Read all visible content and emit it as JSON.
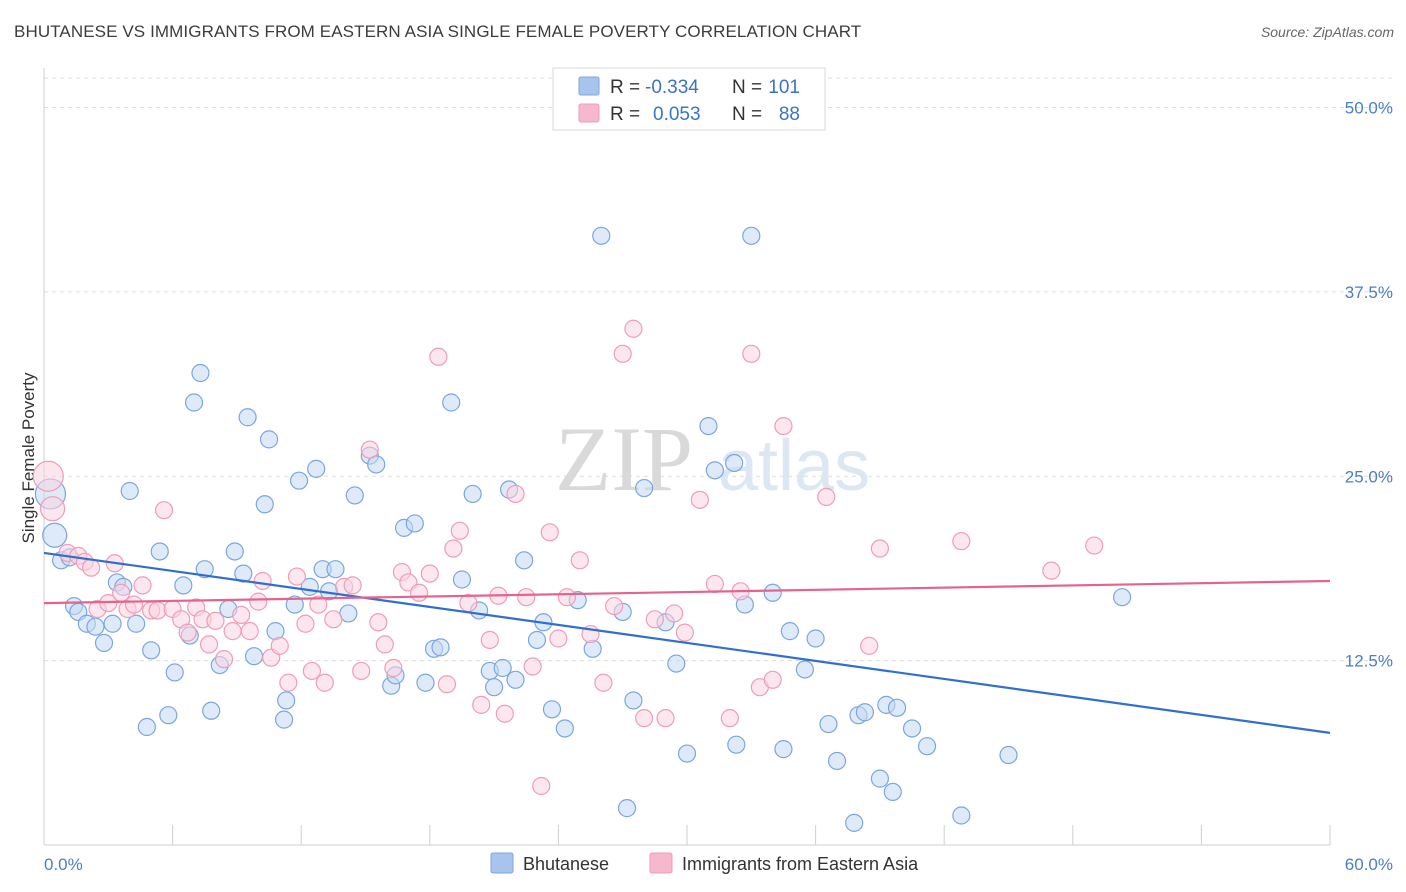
{
  "title": "BHUTANESE VS IMMIGRANTS FROM EASTERN ASIA SINGLE FEMALE POVERTY CORRELATION CHART",
  "source": "Source: ZipAtlas.com",
  "watermark": {
    "zip": "ZIP",
    "atlas": "atlas"
  },
  "legend": {
    "rows": [
      {
        "r_label": "R =",
        "r_value": "-0.334",
        "n_label": "N =",
        "n_value": "101",
        "color": "#a9c4ec"
      },
      {
        "r_label": "R =",
        "r_value": "0.053",
        "n_label": "N =",
        "n_value": "88",
        "color": "#f5b8cc"
      }
    ]
  },
  "bottom_legend": [
    {
      "label": "Bhutanese",
      "color": "#a9c4ec"
    },
    {
      "label": "Immigrants from Eastern Asia",
      "color": "#f5b8cc"
    }
  ],
  "chart_data": {
    "type": "scatter",
    "title": "BHUTANESE VS IMMIGRANTS FROM EASTERN ASIA SINGLE FEMALE POVERTY CORRELATION CHART",
    "xlabel": "",
    "ylabel": "Single Female Poverty",
    "xlim": [
      0,
      60
    ],
    "ylim": [
      0,
      52
    ],
    "x_tick_labels": [
      "0.0%",
      "60.0%"
    ],
    "y_ticks": [
      12.5,
      25.0,
      37.5,
      50.0
    ],
    "y_tick_labels": [
      "12.5%",
      "25.0%",
      "37.5%",
      "50.0%"
    ],
    "grid": "horizontal-dashed",
    "legend_position": "top-center",
    "series": [
      {
        "name": "Bhutanese",
        "color": "#7aa6e0",
        "fill": "#c5d8f3",
        "trend": {
          "x": [
            0,
            60
          ],
          "y": [
            19.8,
            7.6
          ],
          "color": "#2f6fd0"
        },
        "points": [
          [
            0.3,
            23.8,
            3
          ],
          [
            0.5,
            21.0,
            2
          ],
          [
            0.8,
            19.3,
            1
          ],
          [
            1.2,
            19.5,
            1
          ],
          [
            1.4,
            16.2,
            1
          ],
          [
            1.6,
            15.8,
            1
          ],
          [
            2.0,
            15.0,
            1
          ],
          [
            2.4,
            14.8,
            1
          ],
          [
            2.8,
            13.7,
            1
          ],
          [
            3.2,
            15.0,
            1
          ],
          [
            3.4,
            17.8,
            1
          ],
          [
            3.7,
            17.5,
            1
          ],
          [
            4.0,
            24.0,
            1
          ],
          [
            4.3,
            15.0,
            1
          ],
          [
            4.8,
            8.0,
            1
          ],
          [
            5.0,
            13.2,
            1
          ],
          [
            5.4,
            19.9,
            1
          ],
          [
            5.8,
            8.8,
            1
          ],
          [
            6.1,
            11.7,
            1
          ],
          [
            6.5,
            17.6,
            1
          ],
          [
            6.8,
            14.2,
            1
          ],
          [
            7.0,
            30.0,
            1
          ],
          [
            7.3,
            32.0,
            1
          ],
          [
            7.5,
            18.7,
            1
          ],
          [
            7.8,
            9.1,
            1
          ],
          [
            8.2,
            12.2,
            1
          ],
          [
            8.6,
            16.0,
            1
          ],
          [
            8.9,
            19.9,
            1
          ],
          [
            9.3,
            18.4,
            1
          ],
          [
            9.5,
            29.0,
            1
          ],
          [
            9.8,
            12.8,
            1
          ],
          [
            10.3,
            23.1,
            1
          ],
          [
            10.5,
            27.5,
            1
          ],
          [
            10.8,
            14.5,
            1
          ],
          [
            11.2,
            8.5,
            1
          ],
          [
            11.3,
            9.8,
            1
          ],
          [
            11.7,
            16.3,
            1
          ],
          [
            11.9,
            24.7,
            1
          ],
          [
            12.4,
            17.5,
            1
          ],
          [
            12.7,
            25.5,
            1
          ],
          [
            13.0,
            18.7,
            1
          ],
          [
            13.3,
            17.2,
            1
          ],
          [
            13.6,
            18.7,
            1
          ],
          [
            14.2,
            15.7,
            1
          ],
          [
            14.5,
            23.7,
            1
          ],
          [
            15.2,
            26.4,
            1
          ],
          [
            15.5,
            25.8,
            1
          ],
          [
            16.2,
            10.8,
            1
          ],
          [
            16.4,
            11.5,
            1
          ],
          [
            16.8,
            21.5,
            1
          ],
          [
            17.3,
            21.8,
            1
          ],
          [
            17.8,
            11.0,
            1
          ],
          [
            18.2,
            13.3,
            1
          ],
          [
            18.5,
            13.4,
            1
          ],
          [
            19.0,
            30.0,
            1
          ],
          [
            19.5,
            18.0,
            1
          ],
          [
            20.0,
            23.8,
            1
          ],
          [
            20.3,
            15.9,
            1
          ],
          [
            20.8,
            11.8,
            1
          ],
          [
            21.0,
            10.7,
            1
          ],
          [
            21.4,
            12.0,
            1
          ],
          [
            21.7,
            24.1,
            1
          ],
          [
            22.0,
            11.2,
            1
          ],
          [
            22.4,
            19.3,
            1
          ],
          [
            23.0,
            13.9,
            1
          ],
          [
            23.3,
            15.1,
            1
          ],
          [
            23.7,
            9.2,
            1
          ],
          [
            24.3,
            7.9,
            1
          ],
          [
            24.9,
            16.6,
            1
          ],
          [
            25.6,
            13.3,
            1
          ],
          [
            26.0,
            41.3,
            1
          ],
          [
            27.2,
            2.5,
            1
          ],
          [
            27.0,
            15.8,
            1
          ],
          [
            27.5,
            9.8,
            1
          ],
          [
            28.0,
            24.2,
            1
          ],
          [
            29.0,
            15.1,
            1
          ],
          [
            29.5,
            12.3,
            1
          ],
          [
            30.0,
            6.2,
            1
          ],
          [
            31.0,
            28.4,
            1
          ],
          [
            31.3,
            25.4,
            1
          ],
          [
            32.2,
            25.9,
            1
          ],
          [
            32.3,
            6.8,
            1
          ],
          [
            32.7,
            16.3,
            1
          ],
          [
            33.0,
            41.3,
            1
          ],
          [
            34.0,
            17.1,
            1
          ],
          [
            34.5,
            6.5,
            1
          ],
          [
            34.8,
            14.5,
            1
          ],
          [
            35.5,
            11.9,
            1
          ],
          [
            36.0,
            14.0,
            1
          ],
          [
            36.6,
            8.2,
            1
          ],
          [
            37.0,
            5.7,
            1
          ],
          [
            37.8,
            1.5,
            1
          ],
          [
            38.0,
            8.8,
            1
          ],
          [
            38.3,
            9.0,
            1
          ],
          [
            39.0,
            4.5,
            1
          ],
          [
            39.3,
            9.5,
            1
          ],
          [
            39.6,
            3.6,
            1
          ],
          [
            39.8,
            9.3,
            1
          ],
          [
            40.5,
            7.9,
            1
          ],
          [
            41.2,
            6.7,
            1
          ],
          [
            42.8,
            2.0,
            1
          ],
          [
            45.0,
            6.1,
            1
          ],
          [
            50.3,
            16.8,
            1
          ]
        ]
      },
      {
        "name": "Immigrants from Eastern Asia",
        "color": "#ef9cb8",
        "fill": "#f9d3e0",
        "trend": {
          "x": [
            0,
            60
          ],
          "y": [
            16.4,
            17.9
          ],
          "color": "#e4648d"
        },
        "points": [
          [
            0.2,
            25.0,
            3
          ],
          [
            0.4,
            22.8,
            2
          ],
          [
            1.1,
            19.8,
            1
          ],
          [
            1.6,
            19.6,
            1
          ],
          [
            1.9,
            19.2,
            1
          ],
          [
            2.2,
            18.8,
            1
          ],
          [
            2.5,
            16.0,
            1
          ],
          [
            3.0,
            16.4,
            1
          ],
          [
            3.3,
            19.1,
            1
          ],
          [
            3.6,
            17.1,
            1
          ],
          [
            3.9,
            16.0,
            1
          ],
          [
            4.2,
            16.3,
            1
          ],
          [
            4.6,
            17.6,
            1
          ],
          [
            5.0,
            15.9,
            1
          ],
          [
            5.3,
            15.9,
            1
          ],
          [
            5.6,
            22.7,
            1
          ],
          [
            6.0,
            16.0,
            1
          ],
          [
            6.4,
            15.3,
            1
          ],
          [
            6.7,
            14.4,
            1
          ],
          [
            7.1,
            16.1,
            1
          ],
          [
            7.4,
            15.3,
            1
          ],
          [
            7.7,
            13.6,
            1
          ],
          [
            8.0,
            15.2,
            1
          ],
          [
            8.4,
            12.6,
            1
          ],
          [
            8.8,
            14.5,
            1
          ],
          [
            9.2,
            15.6,
            1
          ],
          [
            9.6,
            14.5,
            1
          ],
          [
            10.0,
            16.5,
            1
          ],
          [
            10.2,
            17.9,
            1
          ],
          [
            10.6,
            12.7,
            1
          ],
          [
            11.0,
            13.5,
            1
          ],
          [
            11.4,
            11.0,
            1
          ],
          [
            11.8,
            18.2,
            1
          ],
          [
            12.2,
            15.0,
            1
          ],
          [
            12.5,
            11.8,
            1
          ],
          [
            12.8,
            16.3,
            1
          ],
          [
            13.1,
            11.0,
            1
          ],
          [
            13.5,
            15.3,
            1
          ],
          [
            14.0,
            17.5,
            1
          ],
          [
            14.4,
            17.6,
            1
          ],
          [
            14.8,
            11.8,
            1
          ],
          [
            15.2,
            26.8,
            1
          ],
          [
            15.6,
            15.1,
            1
          ],
          [
            15.9,
            13.6,
            1
          ],
          [
            16.3,
            12.0,
            1
          ],
          [
            16.7,
            18.5,
            1
          ],
          [
            17.0,
            17.8,
            1
          ],
          [
            17.5,
            17.1,
            1
          ],
          [
            18.0,
            18.4,
            1
          ],
          [
            18.4,
            33.1,
            1
          ],
          [
            18.8,
            10.9,
            1
          ],
          [
            19.1,
            20.1,
            1
          ],
          [
            19.4,
            21.3,
            1
          ],
          [
            19.8,
            16.4,
            1
          ],
          [
            20.4,
            9.5,
            1
          ],
          [
            20.8,
            13.9,
            1
          ],
          [
            21.2,
            16.9,
            1
          ],
          [
            21.5,
            8.9,
            1
          ],
          [
            22.0,
            23.8,
            1
          ],
          [
            22.5,
            16.8,
            1
          ],
          [
            22.8,
            12.1,
            1
          ],
          [
            23.2,
            4.0,
            1
          ],
          [
            23.6,
            21.2,
            1
          ],
          [
            24.0,
            14.0,
            1
          ],
          [
            24.4,
            16.8,
            1
          ],
          [
            25.0,
            19.3,
            1
          ],
          [
            25.5,
            14.3,
            1
          ],
          [
            26.1,
            11.0,
            1
          ],
          [
            26.6,
            16.2,
            1
          ],
          [
            27.0,
            33.3,
            1
          ],
          [
            27.5,
            35.0,
            1
          ],
          [
            28.0,
            8.6,
            1
          ],
          [
            28.5,
            15.3,
            1
          ],
          [
            29.0,
            8.6,
            1
          ],
          [
            29.4,
            15.7,
            1
          ],
          [
            29.9,
            14.4,
            1
          ],
          [
            30.6,
            23.4,
            1
          ],
          [
            31.3,
            17.7,
            1
          ],
          [
            32.0,
            8.6,
            1
          ],
          [
            32.5,
            17.2,
            1
          ],
          [
            33.0,
            33.3,
            1
          ],
          [
            33.4,
            10.7,
            1
          ],
          [
            34.0,
            11.2,
            1
          ],
          [
            34.5,
            28.4,
            1
          ],
          [
            36.5,
            23.6,
            1
          ],
          [
            38.5,
            13.5,
            1
          ],
          [
            39.0,
            20.1,
            1
          ],
          [
            42.8,
            20.6,
            1
          ],
          [
            47.0,
            18.6,
            1
          ],
          [
            49.0,
            20.3,
            1
          ]
        ]
      }
    ]
  }
}
